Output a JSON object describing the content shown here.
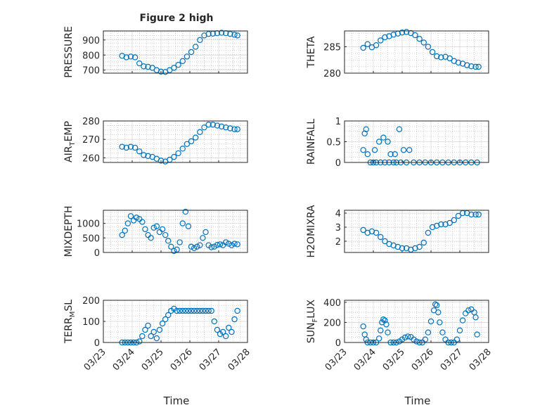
{
  "figure": {
    "title": "Figure 2 high",
    "x_label": "Time",
    "x_tick_labels": [
      "03/23",
      "03/24",
      "03/25",
      "03/26",
      "03/27",
      "03/28"
    ],
    "marker_color": "#0072BD"
  },
  "chart_data": [
    {
      "type": "scatter",
      "name": "pressure",
      "ylabel": "PRESSURE",
      "ylabel_base": "PRESSURE",
      "ylabel_sub": "",
      "ylabel_tail": "",
      "title": "Figure 2 high",
      "ylim": [
        680,
        960
      ],
      "yticks": [
        700,
        800,
        900
      ],
      "xlim": [
        0,
        5
      ],
      "xtick_labels": [
        "03/23",
        "03/24",
        "03/25",
        "03/26",
        "03/27",
        "03/28"
      ],
      "grid": true,
      "x": [
        0.65,
        0.8,
        0.95,
        1.1,
        1.25,
        1.4,
        1.55,
        1.7,
        1.85,
        2.0,
        2.15,
        2.3,
        2.45,
        2.6,
        2.75,
        2.9,
        3.05,
        3.2,
        3.35,
        3.5,
        3.65,
        3.8,
        3.95,
        4.1,
        4.25,
        4.4,
        4.55,
        4.65
      ],
      "y": [
        795,
        785,
        790,
        785,
        745,
        725,
        722,
        715,
        700,
        690,
        688,
        700,
        715,
        735,
        760,
        790,
        820,
        855,
        900,
        930,
        940,
        942,
        945,
        948,
        945,
        940,
        935,
        930
      ]
    },
    {
      "type": "scatter",
      "name": "theta",
      "ylabel": "THETA",
      "ylabel_base": "THETA",
      "ylabel_sub": "",
      "ylabel_tail": "",
      "title": "",
      "ylim": [
        280,
        288
      ],
      "yticks": [
        280,
        285
      ],
      "xlim": [
        0,
        5
      ],
      "xtick_labels": [
        "03/23",
        "03/24",
        "03/25",
        "03/26",
        "03/27",
        "03/28"
      ],
      "grid": true,
      "x": [
        0.65,
        0.8,
        0.95,
        1.1,
        1.25,
        1.4,
        1.55,
        1.7,
        1.85,
        2.0,
        2.15,
        2.3,
        2.45,
        2.6,
        2.75,
        2.9,
        3.05,
        3.2,
        3.35,
        3.5,
        3.65,
        3.8,
        3.95,
        4.1,
        4.25,
        4.4,
        4.55,
        4.65
      ],
      "y": [
        284.8,
        285.5,
        284.9,
        285.3,
        286.2,
        286.8,
        287.0,
        287.3,
        287.5,
        287.7,
        287.8,
        287.6,
        287.2,
        286.5,
        285.8,
        285.0,
        284.0,
        283.2,
        283.0,
        283.1,
        282.8,
        282.3,
        282.0,
        281.8,
        281.5,
        281.3,
        281.2,
        281.2
      ]
    },
    {
      "type": "scatter",
      "name": "air_temp",
      "ylabel": "AIR_TEMP",
      "ylabel_base": "AIR",
      "ylabel_sub": "T",
      "ylabel_tail": "EMP",
      "title": "",
      "ylim": [
        257.5,
        280
      ],
      "yticks": [
        260,
        270,
        280
      ],
      "xlim": [
        0,
        5
      ],
      "xtick_labels": [
        "03/23",
        "03/24",
        "03/25",
        "03/26",
        "03/27",
        "03/28"
      ],
      "grid": true,
      "x": [
        0.65,
        0.8,
        0.95,
        1.1,
        1.25,
        1.4,
        1.55,
        1.7,
        1.85,
        2.0,
        2.15,
        2.3,
        2.45,
        2.6,
        2.75,
        2.9,
        3.05,
        3.2,
        3.35,
        3.5,
        3.65,
        3.8,
        3.95,
        4.1,
        4.25,
        4.4,
        4.55,
        4.65
      ],
      "y": [
        266,
        265.5,
        266,
        265.5,
        263.5,
        261.5,
        261,
        260.5,
        259.5,
        258.5,
        258,
        259,
        260.5,
        262.5,
        265,
        267.5,
        269,
        271,
        274,
        276.5,
        278,
        278,
        277.5,
        277,
        276.5,
        276,
        275.5,
        275.5
      ]
    },
    {
      "type": "scatter",
      "name": "rainfall",
      "ylabel": "RAINFALL",
      "ylabel_base": "RAINFALL",
      "ylabel_sub": "",
      "ylabel_tail": "",
      "title": "",
      "ylim": [
        0,
        1
      ],
      "yticks": [
        0,
        0.5,
        1
      ],
      "ytick_labels": [
        "0",
        "0.5",
        "1"
      ],
      "xlim": [
        0,
        5
      ],
      "xtick_labels": [
        "03/23",
        "03/24",
        "03/25",
        "03/26",
        "03/27",
        "03/28"
      ],
      "grid": true,
      "x": [
        0.65,
        0.7,
        0.75,
        0.8,
        0.9,
        1.0,
        1.05,
        1.1,
        1.2,
        1.25,
        1.35,
        1.4,
        1.5,
        1.55,
        1.6,
        1.7,
        1.75,
        1.8,
        1.9,
        1.95,
        2.05,
        2.15,
        2.25,
        2.4,
        2.6,
        2.8,
        3.0,
        3.2,
        3.4,
        3.6,
        3.8,
        4.0,
        4.2,
        4.4,
        4.6
      ],
      "y": [
        0.3,
        0.7,
        0.8,
        0.2,
        0.0,
        0.0,
        0.3,
        0.0,
        0.5,
        0.0,
        0.6,
        0.0,
        0.5,
        0.0,
        0.2,
        0.0,
        0.2,
        0.0,
        0.8,
        0.0,
        0.3,
        0.0,
        0.3,
        0.0,
        0.0,
        0.0,
        0.0,
        0.0,
        0.0,
        0.0,
        0.0,
        0.0,
        0.0,
        0.0,
        0.0
      ]
    },
    {
      "type": "scatter",
      "name": "mixdepth",
      "ylabel": "MIXDEPTH",
      "ylabel_base": "MIXDEPTH",
      "ylabel_sub": "",
      "ylabel_tail": "",
      "title": "",
      "ylim": [
        0,
        1450
      ],
      "yticks": [
        0,
        500,
        1000
      ],
      "xlim": [
        0,
        5
      ],
      "xtick_labels": [
        "03/23",
        "03/24",
        "03/25",
        "03/26",
        "03/27",
        "03/28"
      ],
      "grid": true,
      "x": [
        0.65,
        0.75,
        0.85,
        0.95,
        1.05,
        1.15,
        1.25,
        1.35,
        1.45,
        1.55,
        1.65,
        1.75,
        1.85,
        1.95,
        2.05,
        2.15,
        2.25,
        2.35,
        2.45,
        2.55,
        2.65,
        2.75,
        2.85,
        2.95,
        3.05,
        3.15,
        3.25,
        3.35,
        3.45,
        3.55,
        3.65,
        3.75,
        3.85,
        3.95,
        4.05,
        4.15,
        4.25,
        4.35,
        4.45,
        4.55,
        4.65
      ],
      "y": [
        600,
        750,
        1000,
        1250,
        1100,
        1200,
        1150,
        1050,
        800,
        600,
        500,
        850,
        900,
        700,
        800,
        600,
        400,
        200,
        50,
        100,
        350,
        1000,
        1400,
        900,
        200,
        150,
        200,
        250,
        500,
        700,
        250,
        180,
        200,
        260,
        280,
        250,
        350,
        300,
        250,
        300,
        280
      ]
    },
    {
      "type": "scatter",
      "name": "h2omixra",
      "ylabel": "H2OMIXRA",
      "ylabel_base": "H2OMIXRA",
      "ylabel_sub": "",
      "ylabel_tail": "",
      "title": "",
      "ylim": [
        1.2,
        4.2
      ],
      "yticks": [
        2,
        3,
        4
      ],
      "xlim": [
        0,
        5
      ],
      "xtick_labels": [
        "03/23",
        "03/24",
        "03/25",
        "03/26",
        "03/27",
        "03/28"
      ],
      "grid": true,
      "x": [
        0.65,
        0.8,
        0.95,
        1.1,
        1.25,
        1.4,
        1.55,
        1.7,
        1.85,
        2.0,
        2.15,
        2.3,
        2.45,
        2.6,
        2.75,
        2.9,
        3.05,
        3.2,
        3.35,
        3.5,
        3.65,
        3.8,
        3.95,
        4.1,
        4.25,
        4.4,
        4.55,
        4.65
      ],
      "y": [
        2.8,
        2.6,
        2.7,
        2.6,
        2.3,
        2.0,
        1.8,
        1.7,
        1.6,
        1.5,
        1.5,
        1.4,
        1.5,
        1.6,
        1.9,
        2.6,
        3.0,
        3.1,
        3.2,
        3.2,
        3.3,
        3.5,
        3.8,
        4.0,
        4.0,
        3.9,
        3.9,
        3.9
      ]
    },
    {
      "type": "scatter",
      "name": "terr_msl",
      "ylabel": "TERR_MSL",
      "ylabel_base": "TERR",
      "ylabel_sub": "M",
      "ylabel_tail": "SL",
      "title": "",
      "ylim": [
        0,
        200
      ],
      "yticks": [
        0,
        100,
        200
      ],
      "xlim": [
        0,
        5
      ],
      "xtick_labels": [
        "03/23",
        "03/24",
        "03/25",
        "03/26",
        "03/27",
        "03/28"
      ],
      "grid": true,
      "x": [
        0.65,
        0.75,
        0.85,
        0.95,
        1.05,
        1.15,
        1.25,
        1.35,
        1.45,
        1.55,
        1.65,
        1.75,
        1.85,
        1.95,
        2.05,
        2.15,
        2.25,
        2.35,
        2.45,
        2.55,
        2.65,
        2.75,
        2.85,
        2.95,
        3.05,
        3.15,
        3.25,
        3.35,
        3.45,
        3.55,
        3.65,
        3.75,
        3.85,
        3.95,
        4.05,
        4.15,
        4.25,
        4.35,
        4.45,
        4.55,
        4.65
      ],
      "y": [
        0,
        0,
        0,
        0,
        0,
        0,
        5,
        30,
        60,
        80,
        30,
        50,
        20,
        60,
        90,
        110,
        130,
        150,
        160,
        150,
        150,
        150,
        150,
        150,
        150,
        150,
        150,
        150,
        150,
        150,
        150,
        150,
        100,
        60,
        40,
        50,
        30,
        70,
        50,
        110,
        150
      ]
    },
    {
      "type": "scatter",
      "name": "sun_flux",
      "ylabel": "SUN_FLUX",
      "ylabel_base": "SUN",
      "ylabel_sub": "F",
      "ylabel_tail": "LUX",
      "title": "",
      "ylim": [
        0,
        420
      ],
      "yticks": [
        0,
        200,
        400
      ],
      "xlim": [
        0,
        5
      ],
      "xtick_labels": [
        "03/23",
        "03/24",
        "03/25",
        "03/26",
        "03/27",
        "03/28"
      ],
      "grid": true,
      "x": [
        0.65,
        0.7,
        0.75,
        0.8,
        0.9,
        1.0,
        1.1,
        1.2,
        1.25,
        1.3,
        1.35,
        1.4,
        1.45,
        1.5,
        1.6,
        1.7,
        1.8,
        1.9,
        2.0,
        2.1,
        2.2,
        2.3,
        2.4,
        2.5,
        2.6,
        2.7,
        2.8,
        2.9,
        3.0,
        3.1,
        3.15,
        3.2,
        3.25,
        3.3,
        3.4,
        3.5,
        3.6,
        3.7,
        3.8,
        3.9,
        4.0,
        4.1,
        4.2,
        4.3,
        4.4,
        4.5,
        4.55,
        4.6
      ],
      "y": [
        160,
        80,
        30,
        0,
        0,
        0,
        0,
        40,
        120,
        200,
        230,
        220,
        180,
        100,
        0,
        0,
        0,
        10,
        30,
        50,
        60,
        55,
        30,
        10,
        0,
        0,
        30,
        100,
        210,
        320,
        380,
        370,
        300,
        200,
        100,
        30,
        0,
        0,
        0,
        30,
        120,
        220,
        290,
        320,
        330,
        300,
        250,
        80
      ]
    }
  ]
}
